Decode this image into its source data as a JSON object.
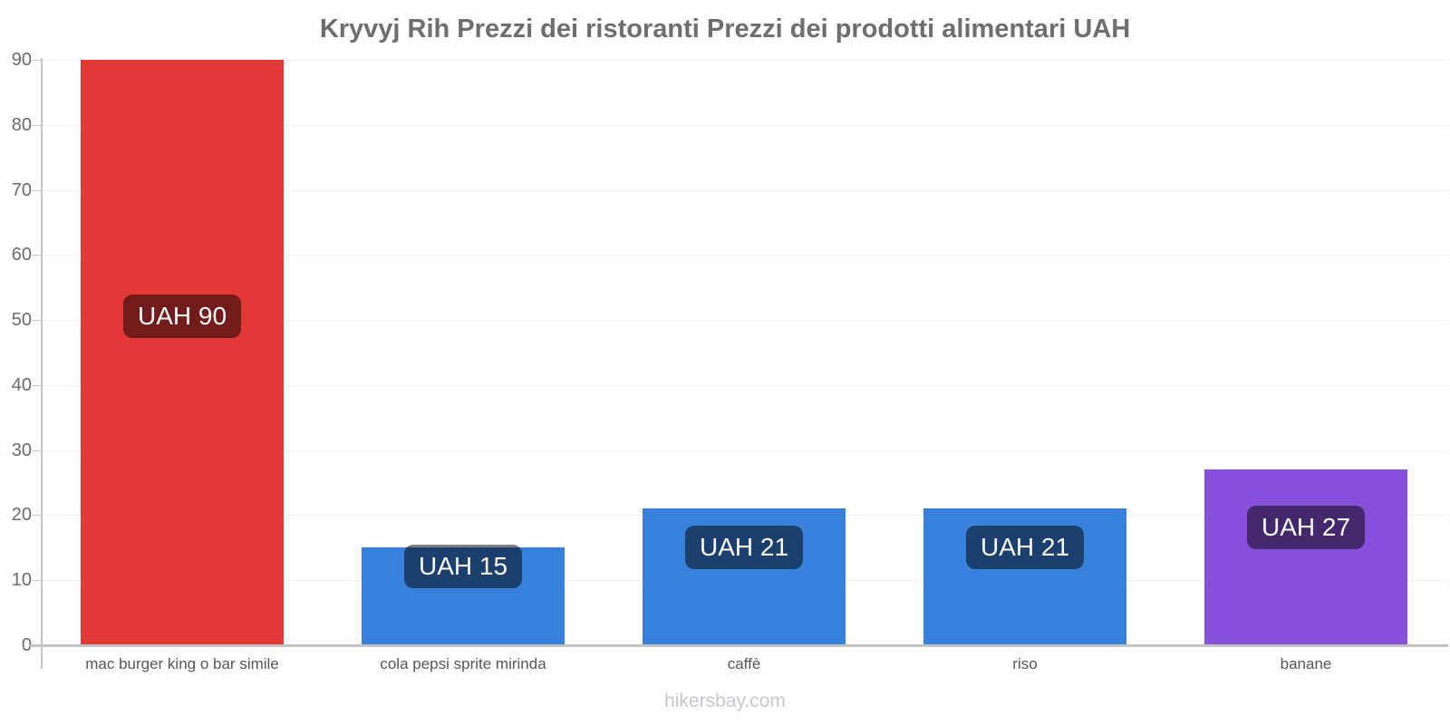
{
  "title": "Kryvyj Rih Prezzi dei ristoranti Prezzi dei prodotti alimentari UAH",
  "footer": "hikersbay.com",
  "chart_data": {
    "type": "bar",
    "title": "Kryvyj Rih Prezzi dei ristoranti Prezzi dei prodotti alimentari UAH",
    "categories": [
      "mac burger king o bar simile",
      "cola pepsi sprite mirinda",
      "caffè",
      "riso",
      "banane"
    ],
    "values": [
      90,
      15,
      21,
      21,
      27
    ],
    "bar_labels": [
      "UAH 90",
      "UAH 15",
      "UAH 21",
      "UAH 21",
      "UAH 27"
    ],
    "bar_colors": [
      "#e23936",
      "#3781dd",
      "#3781dd",
      "#3781dd",
      "#8750db"
    ],
    "currency": "UAH",
    "xlabel": "",
    "ylabel": "",
    "ylim": [
      0,
      90
    ],
    "yticks": [
      0,
      10,
      20,
      30,
      40,
      50,
      60,
      70,
      80,
      90
    ],
    "grid": true,
    "legend": false,
    "label_bg": "rgba(0,0,0,0.5)",
    "label_dy": [
      259,
      -3,
      19,
      19,
      40
    ]
  }
}
